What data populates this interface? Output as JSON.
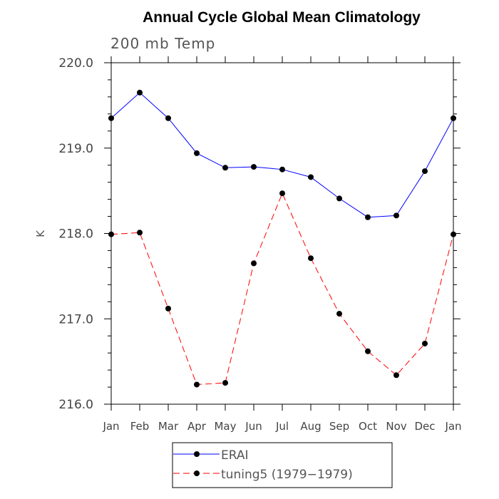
{
  "chart_data": {
    "type": "line",
    "title": "Annual Cycle Global Mean Climatology",
    "subtitle": "200 mb Temp",
    "ylabel": "K",
    "xlabel": "",
    "ylim": [
      216.0,
      220.0
    ],
    "yticks": [
      "216.0",
      "217.0",
      "218.0",
      "219.0",
      "220.0"
    ],
    "ytick_values": [
      216.0,
      217.0,
      218.0,
      219.0,
      220.0
    ],
    "categories": [
      "Jan",
      "Feb",
      "Mar",
      "Apr",
      "May",
      "Jun",
      "Jul",
      "Aug",
      "Sep",
      "Oct",
      "Nov",
      "Dec",
      "Jan"
    ],
    "series": [
      {
        "name": "ERAI",
        "color": "#0000ff",
        "dash": "solid",
        "values": [
          219.35,
          219.65,
          219.35,
          218.94,
          218.77,
          218.78,
          218.75,
          218.66,
          218.41,
          218.19,
          218.21,
          218.73,
          219.35
        ]
      },
      {
        "name": "tuning5 (1979-1979)",
        "color": "#ff0000",
        "dash": "dashed",
        "values": [
          217.99,
          218.01,
          217.12,
          216.23,
          216.25,
          217.65,
          218.47,
          217.71,
          217.06,
          216.62,
          216.34,
          216.71,
          217.99
        ]
      }
    ],
    "legend": {
      "placement": "bottom-center",
      "entries": [
        "ERAI",
        "tuning5 (1979−1979)"
      ]
    }
  }
}
